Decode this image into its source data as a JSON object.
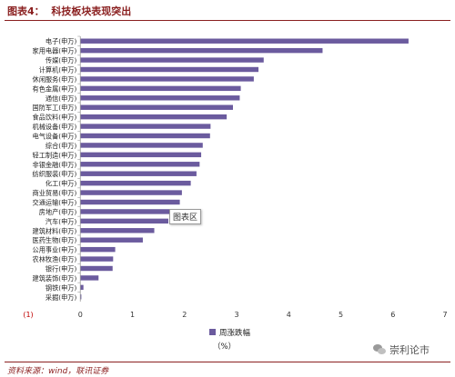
{
  "figure": {
    "title": "图表4：  科技板块表现突出",
    "source": "资料来源：wind，联讯证券",
    "tooltip": "图表区",
    "watermark": "崇利论市",
    "watermark_icon": "wechat-icon"
  },
  "chart_data": {
    "type": "bar",
    "orientation": "horizontal",
    "categories": [
      "电子(申万)",
      "家用电器(申万)",
      "传媒(申万)",
      "计算机(申万)",
      "休闲服务(申万)",
      "有色金属(申万)",
      "通信(申万)",
      "国防军工(申万)",
      "食品饮料(申万)",
      "机械设备(申万)",
      "电气设备(申万)",
      "综合(申万)",
      "轻工制造(申万)",
      "非银金融(申万)",
      "纺织服装(申万)",
      "化工(申万)",
      "商业贸易(申万)",
      "交通运输(申万)",
      "房地产(申万)",
      "汽车(申万)",
      "建筑材料(申万)",
      "医药生物(申万)",
      "公用事业(申万)",
      "农林牧渔(申万)",
      "银行(申万)",
      "建筑装饰(申万)",
      "钢铁(申万)",
      "采掘(申万)"
    ],
    "series": [
      {
        "name": "周涨跌幅",
        "unit": "（%）",
        "color": "#6b5b9e",
        "values": [
          6.3,
          4.65,
          3.52,
          3.42,
          3.33,
          3.08,
          3.06,
          2.93,
          2.81,
          2.5,
          2.49,
          2.35,
          2.32,
          2.29,
          2.23,
          2.12,
          1.95,
          1.91,
          1.72,
          1.69,
          1.42,
          1.2,
          0.67,
          0.63,
          0.62,
          0.35,
          0.06,
          0.02
        ]
      }
    ],
    "xlim": [
      -1,
      7
    ],
    "xticks": [
      "(1)",
      "0",
      "1",
      "2",
      "3",
      "4",
      "5",
      "6",
      "7"
    ],
    "xtick_negative_color": "#c00000",
    "grid": false,
    "legend_position": "bottom"
  }
}
